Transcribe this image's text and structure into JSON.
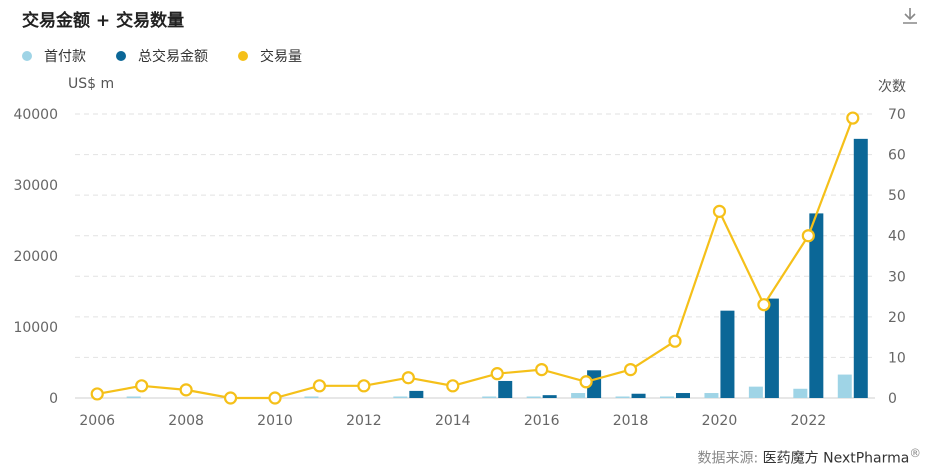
{
  "title": "交易金额 + 交易数量",
  "download_icon": "download-icon",
  "units": {
    "left": "US$ m",
    "right": "次数"
  },
  "source": {
    "label": "数据来源:",
    "brand": "医药魔方 NextPharma",
    "mark": "®"
  },
  "colors": {
    "upfront": "#9fd4e6",
    "total": "#0b6797",
    "count": "#f5c019",
    "grid": "#e2e2e2"
  },
  "chart_data": {
    "type": "bar",
    "categories": [
      "2006",
      "2007",
      "2008",
      "2009",
      "2010",
      "2011",
      "2012",
      "2013",
      "2014",
      "2015",
      "2016",
      "2017",
      "2018",
      "2019",
      "2020",
      "2021",
      "2022",
      "2023"
    ],
    "x_tick_labels": [
      "2006",
      "2008",
      "2010",
      "2012",
      "2014",
      "2016",
      "2018",
      "2020",
      "2022"
    ],
    "title": "交易金额 + 交易数量",
    "ylabel": "US$ m",
    "y2label": "次数",
    "ylim": [
      0,
      40000
    ],
    "y_ticks": [
      0,
      10000,
      20000,
      30000,
      40000
    ],
    "y2lim": [
      0,
      70
    ],
    "y2_ticks": [
      0,
      10,
      20,
      30,
      40,
      50,
      60,
      70
    ],
    "grid": true,
    "legend": "top-left",
    "series": [
      {
        "name": "首付款",
        "type": "bar",
        "axis": "left",
        "color": "#9fd4e6",
        "values": [
          0,
          150,
          0,
          0,
          0,
          200,
          0,
          100,
          0,
          150,
          50,
          700,
          50,
          150,
          700,
          1600,
          1300,
          3300
        ]
      },
      {
        "name": "总交易金额",
        "type": "bar",
        "axis": "left",
        "color": "#0b6797",
        "values": [
          0,
          0,
          0,
          0,
          0,
          0,
          0,
          1000,
          0,
          2400,
          400,
          3900,
          600,
          700,
          12300,
          14000,
          26000,
          36500
        ]
      },
      {
        "name": "交易量",
        "type": "line",
        "axis": "right",
        "color": "#f5c019",
        "values": [
          1,
          3,
          2,
          0,
          0,
          3,
          3,
          5,
          3,
          6,
          7,
          4,
          7,
          14,
          46,
          23,
          40,
          69
        ]
      }
    ]
  }
}
